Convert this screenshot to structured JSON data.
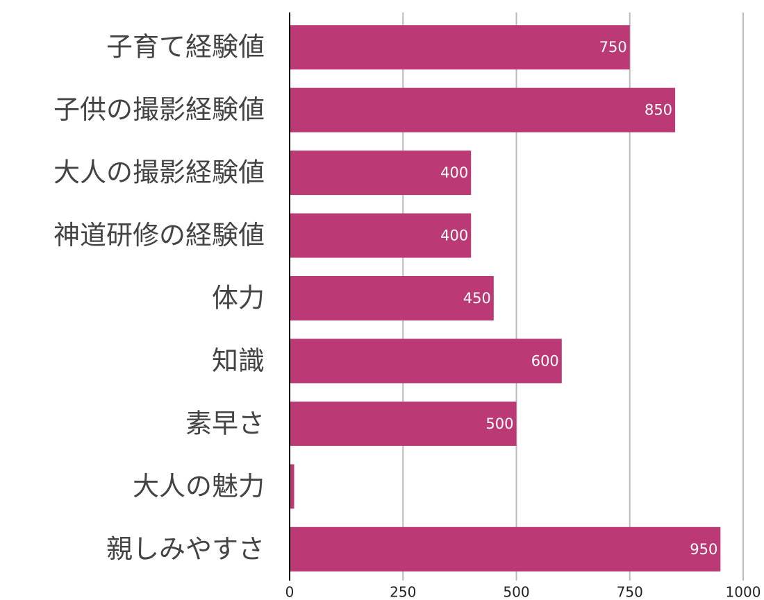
{
  "chart_data": {
    "type": "hbar",
    "categories": [
      "子育て経験値",
      "子供の撮影経験値",
      "大人の撮影経験値",
      "神道研修の経験値",
      "体力",
      "知識",
      "素早さ",
      "大人の魅力",
      "親しみやすさ"
    ],
    "values": [
      750,
      850,
      400,
      400,
      450,
      600,
      500,
      10,
      950
    ],
    "color": "#bb3a75",
    "xlim": [
      0,
      1000
    ],
    "xticks": [
      0,
      250,
      500,
      750,
      1000
    ],
    "grid": true
  }
}
